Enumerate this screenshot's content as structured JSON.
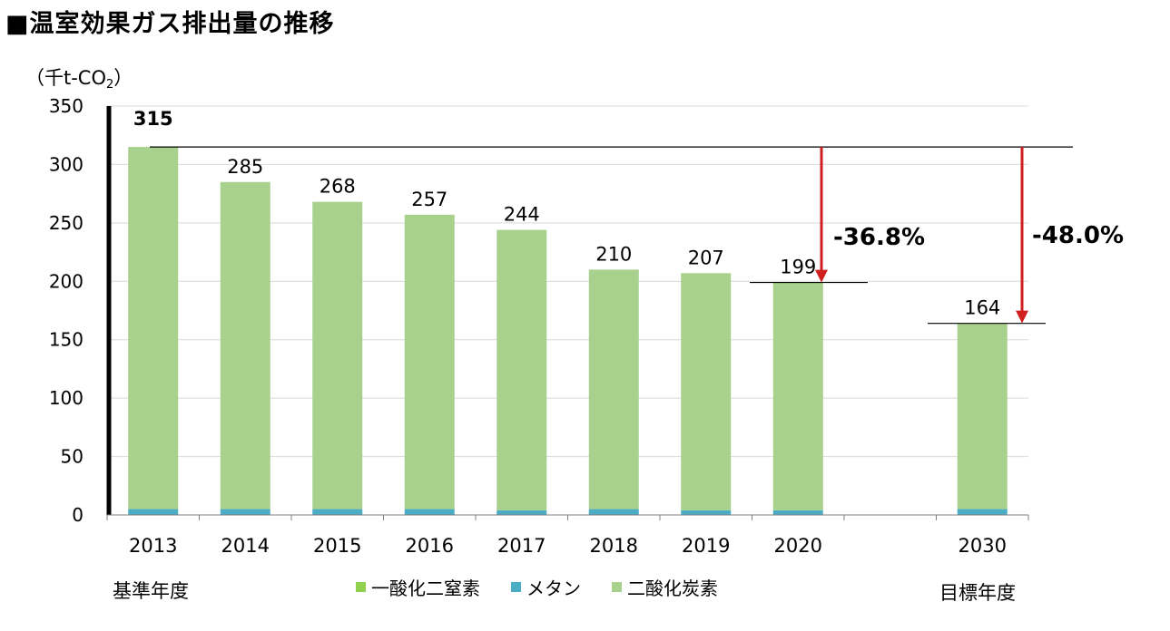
{
  "title": "■温室効果ガス排出量の推移",
  "unit_label": {
    "main": "（千t-CO",
    "sub": "2",
    "close": "）"
  },
  "chart_data": {
    "type": "bar",
    "stacked": true,
    "categories": [
      "2013",
      "2014",
      "2015",
      "2016",
      "2017",
      "2018",
      "2019",
      "2020",
      "2030"
    ],
    "series": [
      {
        "name": "一酸化二窒素",
        "color": "#92d050",
        "values": [
          0,
          0,
          0,
          0,
          0,
          0,
          0,
          0,
          0
        ]
      },
      {
        "name": "メタン",
        "color": "#4bacc6",
        "values": [
          5,
          5,
          5,
          5,
          4,
          5,
          4,
          4,
          5
        ]
      },
      {
        "name": "二酸化炭素",
        "color": "#a9d18e",
        "values": [
          310,
          280,
          263,
          252,
          240,
          205,
          203,
          195,
          159
        ]
      }
    ],
    "totals": [
      "315",
      "285",
      "268",
      "257",
      "244",
      "210",
      "207",
      "199",
      "164"
    ],
    "ylim": [
      0,
      350
    ],
    "yticks": [
      "0",
      "50",
      "100",
      "150",
      "200",
      "250",
      "300",
      "350"
    ],
    "annotations": [
      {
        "label": "-36.8%",
        "from": 315,
        "to": 199,
        "category": "2020"
      },
      {
        "label": "-48.0%",
        "from": 315,
        "to": 164,
        "category": "2030"
      }
    ],
    "grid": true,
    "legend_position": "bottom"
  },
  "category_notes": {
    "base_year": "基準年度",
    "target_year": "目標年度"
  }
}
